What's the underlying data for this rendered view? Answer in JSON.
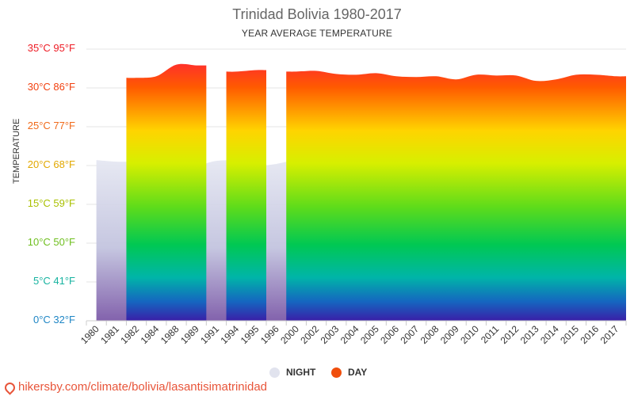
{
  "header": {
    "title": "Trinidad Bolivia 1980-2017",
    "subtitle": "YEAR AVERAGE TEMPERATURE"
  },
  "legend": {
    "night_label": "NIGHT",
    "day_label": "DAY",
    "night_color": "#e1e3ee",
    "day_color": "#f04e0c"
  },
  "footer": {
    "url": "hikersby.com/climate/bolivia/lasantisimatrinidad"
  },
  "chart_data": {
    "type": "area",
    "title": "Trinidad Bolivia 1980-2017",
    "subtitle": "YEAR AVERAGE TEMPERATURE",
    "ylabel": "TEMPERATURE",
    "ylim": [
      0,
      35
    ],
    "y_ticks": [
      {
        "value": 35,
        "label": "35°C 95°F",
        "color": "#ee1c25"
      },
      {
        "value": 30,
        "label": "30°C 86°F",
        "color": "#f2400f"
      },
      {
        "value": 25,
        "label": "25°C 77°F",
        "color": "#f06a1a"
      },
      {
        "value": 20,
        "label": "20°C 68°F",
        "color": "#e2a800"
      },
      {
        "value": 15,
        "label": "15°C 59°F",
        "color": "#a9c000"
      },
      {
        "value": 10,
        "label": "10°C 50°F",
        "color": "#6fbf1f"
      },
      {
        "value": 5,
        "label": "5°C 41°F",
        "color": "#17b3a0"
      },
      {
        "value": 0,
        "label": "0°C 32°F",
        "color": "#1f86c5"
      }
    ],
    "categories": [
      "1980",
      "1981",
      "1982",
      "1984",
      "1988",
      "1989",
      "1991",
      "1994",
      "1995",
      "1996",
      "2000",
      "2002",
      "2003",
      "2004",
      "2005",
      "2006",
      "2007",
      "2008",
      "2009",
      "2010",
      "2011",
      "2012",
      "2013",
      "2014",
      "2015",
      "2016",
      "2017"
    ],
    "series": [
      {
        "name": "NIGHT",
        "values": [
          20.7,
          20.5,
          20.5,
          20.4,
          20.3,
          20.0,
          20.6,
          20.6,
          20.0,
          20.2,
          20.8,
          21.2,
          20.6,
          20.5,
          20.5,
          20.3,
          19.8,
          20.5,
          20.8,
          20.8,
          20.9,
          21.0,
          20.8,
          21.5,
          21.6,
          20.8,
          20.9
        ]
      },
      {
        "name": "DAY",
        "values": [
          null,
          null,
          31.3,
          31.5,
          33.0,
          32.9,
          null,
          32.1,
          32.3,
          null,
          32.1,
          32.2,
          31.8,
          31.7,
          31.9,
          31.5,
          31.4,
          31.5,
          31.1,
          31.7,
          31.6,
          31.6,
          30.9,
          31.1,
          31.7,
          31.7,
          31.5
        ]
      }
    ]
  }
}
